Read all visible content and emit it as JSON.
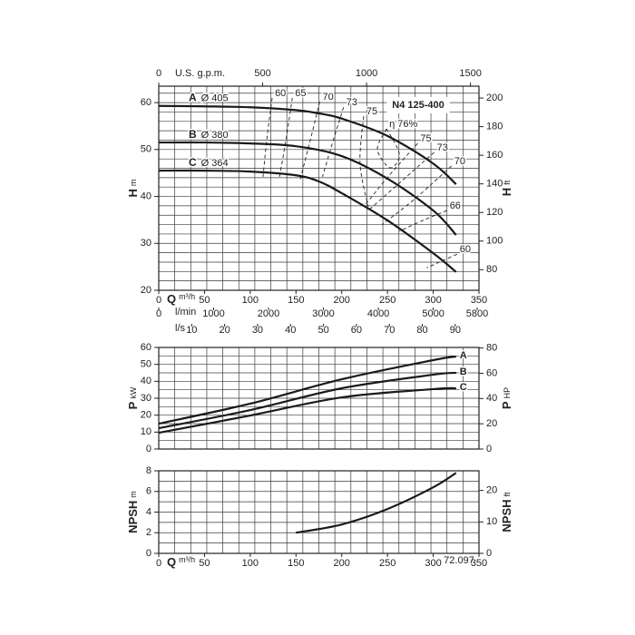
{
  "chart_data": [
    {
      "type": "line",
      "title": "N4 125-400",
      "x_label": {
        "symbol": "Q",
        "unit": "m³/h"
      },
      "y_label": {
        "symbol": "H",
        "unit": "m"
      },
      "y2_label": {
        "symbol": "H",
        "unit": "ft"
      },
      "xlim": [
        0,
        350
      ],
      "xticks": [
        0,
        50,
        100,
        150,
        200,
        250,
        300,
        350
      ],
      "ylim": [
        20,
        63.5
      ],
      "yticks": [
        20,
        30,
        40,
        50,
        60
      ],
      "y2lim": [
        65.6,
        208.3
      ],
      "y2ticks": [
        80,
        100,
        120,
        140,
        160,
        180,
        200
      ],
      "top_axis": {
        "label": "U.S. g.p.m.",
        "lim": [
          0,
          1541
        ],
        "ticks": [
          0,
          500,
          1000,
          1500
        ]
      },
      "bottom_axes": [
        {
          "label": "l/min",
          "lim": [
            0,
            5833
          ],
          "ticks": [
            0,
            1000,
            2000,
            3000,
            4000,
            5000,
            5800
          ]
        },
        {
          "label": "l/s",
          "lim": [
            0,
            97.2
          ],
          "ticks": [
            10,
            20,
            30,
            40,
            50,
            60,
            70,
            80,
            90
          ]
        }
      ],
      "grid": true,
      "x_grid_step": 17.5,
      "y_grid_step": 2,
      "series": [
        {
          "name": "A",
          "diameter": "Ø 405",
          "color": "#1a1a1a",
          "x": [
            0,
            50,
            100,
            150,
            175,
            200,
            250,
            300,
            325
          ],
          "values": [
            59.3,
            59.2,
            59.0,
            58.4,
            57.7,
            56.6,
            52.9,
            47.0,
            42.6
          ]
        },
        {
          "name": "B",
          "diameter": "Ø 380",
          "color": "#1a1a1a",
          "x": [
            0,
            50,
            100,
            150,
            200,
            250,
            300,
            325
          ],
          "values": [
            51.5,
            51.5,
            51.3,
            50.7,
            48.6,
            43.8,
            37.0,
            31.8
          ]
        },
        {
          "name": "C",
          "diameter": "Ø 364",
          "color": "#1a1a1a",
          "x": [
            0,
            50,
            100,
            150,
            175,
            200,
            250,
            300,
            325
          ],
          "values": [
            45.5,
            45.5,
            45.3,
            44.5,
            43.2,
            40.7,
            34.9,
            27.9,
            23.9
          ]
        }
      ],
      "efficiency_curves": [
        {
          "label": "60",
          "x": [
            124,
            118,
            114
          ],
          "values": [
            61,
            52,
            44.2
          ]
        },
        {
          "label": "65",
          "x": [
            146,
            139,
            132
          ],
          "values": [
            61,
            52,
            44.2
          ]
        },
        {
          "label": "70",
          "x": [
            176,
            165,
            154
          ],
          "values": [
            60.2,
            51.5,
            43.2
          ]
        },
        {
          "label": "73",
          "x": [
            202,
            190,
            179
          ],
          "values": [
            59,
            51.5,
            44.2
          ]
        },
        {
          "label": "75",
          "x": [
            224,
            220,
            229
          ],
          "values": [
            57.1,
            47,
            37.8
          ]
        },
        {
          "label": "η 76%",
          "x": [
            249,
            239,
            253,
            263,
            249
          ],
          "values": [
            54.4,
            50,
            46.1,
            49,
            54.4
          ]
        },
        {
          "label": "75",
          "x": [
            283,
            252,
            224
          ],
          "values": [
            51.3,
            44.5,
            37.8
          ]
        },
        {
          "label": "73",
          "x": [
            301,
            265,
            229
          ],
          "values": [
            49.4,
            43.2,
            37
          ]
        },
        {
          "label": "70",
          "x": [
            320,
            280,
            244
          ],
          "values": [
            46.5,
            39.5,
            34
          ]
        },
        {
          "label": "66",
          "x": [
            315,
            290,
            263
          ],
          "values": [
            37,
            35,
            32.6
          ]
        },
        {
          "label": "60",
          "x": [
            326,
            310,
            293
          ],
          "values": [
            27.7,
            26.3,
            24.8
          ]
        }
      ]
    },
    {
      "type": "line",
      "y_label": {
        "symbol": "P",
        "unit": "kW"
      },
      "y2_label": {
        "symbol": "P",
        "unit": "HP"
      },
      "xlim": [
        0,
        350
      ],
      "ylim": [
        0,
        60
      ],
      "yticks": [
        0,
        10,
        20,
        30,
        40,
        50,
        60
      ],
      "y2lim": [
        0,
        80.46
      ],
      "y2ticks": [
        0,
        20,
        40,
        60,
        80
      ],
      "grid": true,
      "x_grid_step": 17.5,
      "y_grid_step": 5,
      "series": [
        {
          "name": "A",
          "color": "#1a1a1a",
          "x": [
            0,
            100,
            200,
            300,
            325
          ],
          "values": [
            15,
            26.8,
            41.2,
            52.5,
            54.6
          ]
        },
        {
          "name": "B",
          "color": "#1a1a1a",
          "x": [
            0,
            100,
            200,
            300,
            325
          ],
          "values": [
            12.3,
            23,
            35.9,
            43.9,
            45
          ]
        },
        {
          "name": "C",
          "color": "#1a1a1a",
          "x": [
            0,
            100,
            200,
            300,
            325
          ],
          "values": [
            9.6,
            19.8,
            30.5,
            35.4,
            35.9
          ]
        }
      ]
    },
    {
      "type": "line",
      "x_label": {
        "symbol": "Q",
        "unit": "m³/h"
      },
      "y_label": {
        "symbol": "NPSH",
        "unit": "m"
      },
      "y2_label": {
        "symbol": "NPSH",
        "unit": "ft"
      },
      "xlim": [
        0,
        350
      ],
      "xticks": [
        0,
        50,
        100,
        150,
        200,
        250,
        300,
        350
      ],
      "ylim": [
        0,
        8
      ],
      "yticks": [
        0,
        2,
        4,
        6,
        8
      ],
      "y2lim": [
        0,
        26.25
      ],
      "y2ticks": [
        0,
        10,
        20
      ],
      "grid": true,
      "x_grid_step": 17.5,
      "y_grid_step": 1,
      "code": "72.097",
      "series": [
        {
          "color": "#1a1a1a",
          "x": [
            150,
            200,
            250,
            300,
            325
          ],
          "values": [
            2.0,
            2.8,
            4.3,
            6.4,
            7.8
          ]
        }
      ]
    }
  ]
}
